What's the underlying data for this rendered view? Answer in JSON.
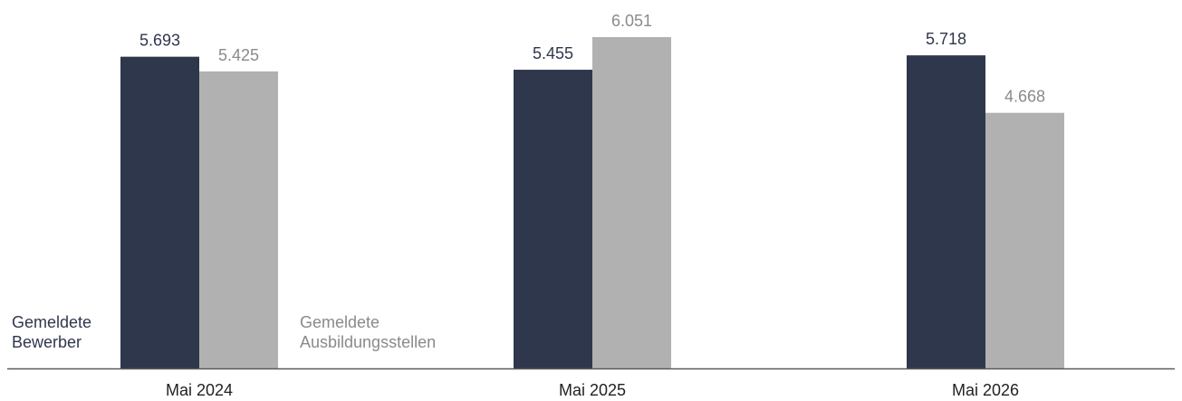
{
  "chart_data": {
    "type": "bar",
    "categories": [
      "Mai 2024",
      "Mai 2025",
      "Mai 2026"
    ],
    "series": [
      {
        "name": "Gemeldete Bewerber",
        "name_lines": [
          "Gemeldete",
          "Bewerber"
        ],
        "values": [
          5693,
          5455,
          5718
        ],
        "value_labels": [
          "5.693",
          "5.455",
          "5.718"
        ],
        "color": "#2f374c"
      },
      {
        "name": "Gemeldete Ausbildungsstellen",
        "name_lines": [
          "Gemeldete",
          "Ausbildungsstellen"
        ],
        "values": [
          5425,
          6051,
          4668
        ],
        "value_labels": [
          "5.425",
          "6.051",
          "4.668"
        ],
        "color": "#b1b1b1"
      }
    ],
    "colors": {
      "series_1_label": "#2f374c",
      "series_2_label": "#8a8a8a",
      "axis": "#5a5a5a",
      "category_label": "#222222"
    },
    "ylim": [
      0,
      6051
    ],
    "grid": false,
    "y_axis_visible": false,
    "legend_placement": "inline-bottom-left"
  }
}
